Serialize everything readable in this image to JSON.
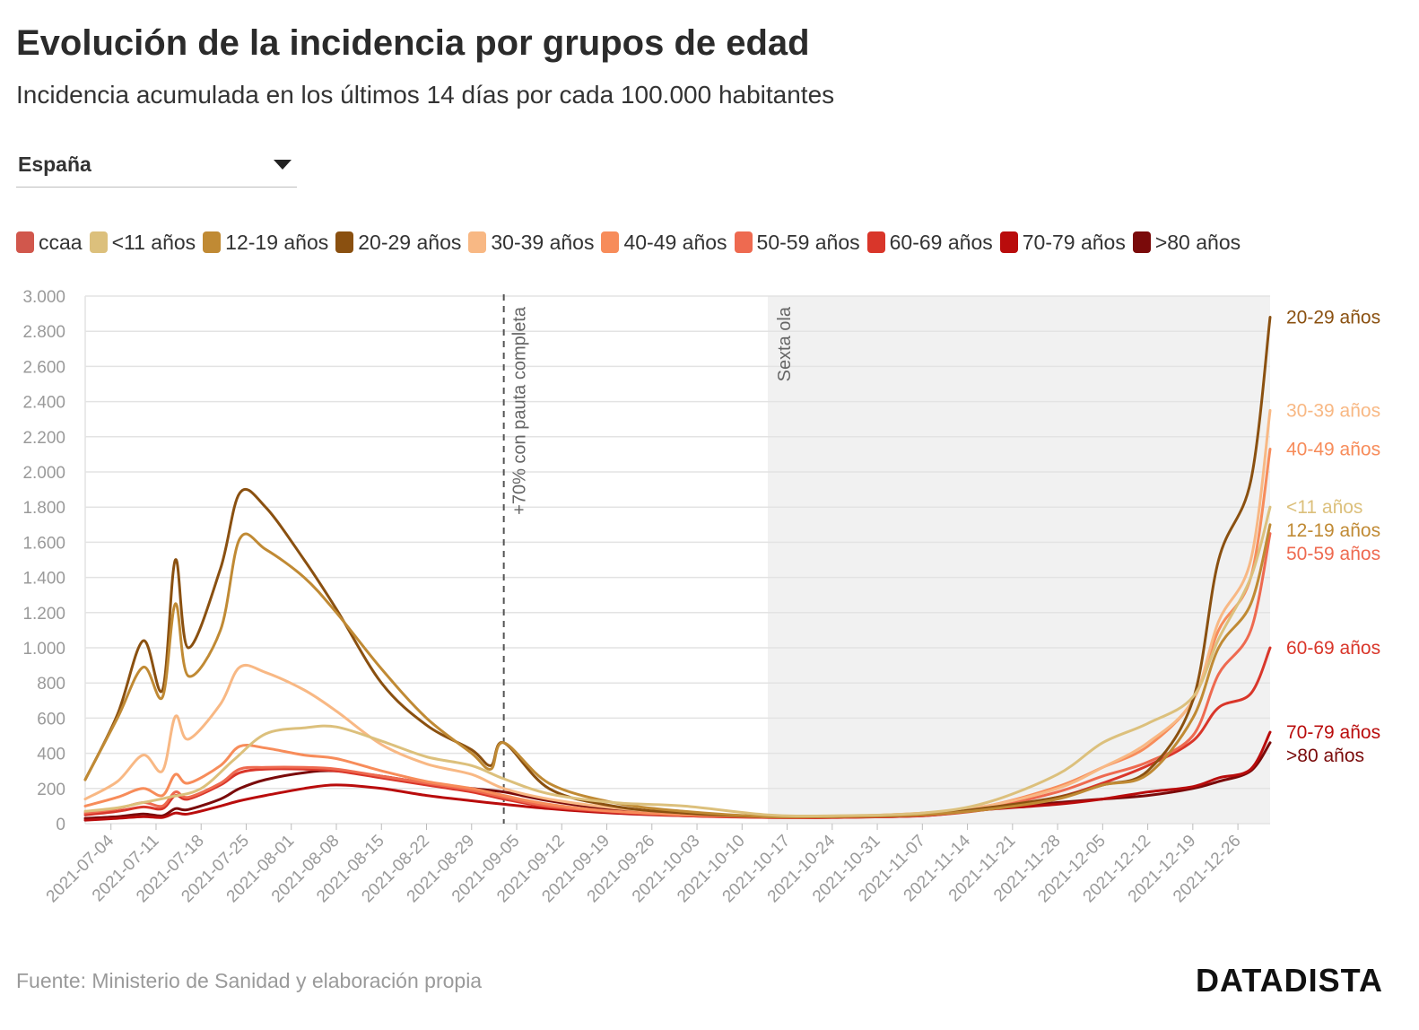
{
  "header": {
    "title": "Evolución de la incidencia por grupos de edad",
    "subtitle": "Incidencia acumulada en los últimos 14 días por cada 100.000 habitantes"
  },
  "selector": {
    "value": "España"
  },
  "footer": {
    "source": "Fuente: Ministerio de Sanidad y elaboración propia",
    "logo": "DATADISTA"
  },
  "chart_data": {
    "type": "line",
    "ylim": [
      0,
      3000
    ],
    "yticks": [
      0,
      200,
      400,
      600,
      800,
      1000,
      1200,
      1400,
      1600,
      1800,
      2000,
      2200,
      2400,
      2600,
      2800,
      3000
    ],
    "ytick_labels": [
      "0",
      "200",
      "400",
      "600",
      "800",
      "1.000",
      "1.200",
      "1.400",
      "1.600",
      "1.800",
      "2.000",
      "2.200",
      "2.400",
      "2.600",
      "2.800",
      "3.000"
    ],
    "xlim": [
      "2021-06-30",
      "2021-12-31"
    ],
    "xticks": [
      "2021-07-04",
      "2021-07-11",
      "2021-07-18",
      "2021-07-25",
      "2021-08-01",
      "2021-08-08",
      "2021-08-15",
      "2021-08-22",
      "2021-08-29",
      "2021-09-05",
      "2021-09-12",
      "2021-09-19",
      "2021-09-26",
      "2021-10-03",
      "2021-10-10",
      "2021-10-17",
      "2021-10-24",
      "2021-10-31",
      "2021-11-07",
      "2021-11-14",
      "2021-11-21",
      "2021-11-28",
      "2021-12-05",
      "2021-12-12",
      "2021-12-19",
      "2021-12-26"
    ],
    "grid": true,
    "legend_position": "top",
    "annotations": [
      {
        "type": "vline",
        "date": "2021-09-03",
        "label": "+70% con pauta completa"
      },
      {
        "type": "shaded",
        "from": "2021-10-14",
        "to": "2021-12-31",
        "label": "Sexta ola"
      }
    ],
    "series": [
      {
        "name": "ccaa",
        "color": "#d1574c",
        "end_label": "",
        "x": [],
        "y": []
      },
      {
        "name": "<11 años",
        "color": "#dcc07c",
        "end_label": "<11 años",
        "x": [
          "2021-06-30",
          "2021-07-05",
          "2021-07-09",
          "2021-07-13",
          "2021-07-18",
          "2021-07-23",
          "2021-07-28",
          "2021-08-03",
          "2021-08-08",
          "2021-08-15",
          "2021-08-22",
          "2021-08-29",
          "2021-09-03",
          "2021-09-10",
          "2021-09-20",
          "2021-10-01",
          "2021-10-14",
          "2021-10-24",
          "2021-11-07",
          "2021-11-17",
          "2021-11-28",
          "2021-12-05",
          "2021-12-12",
          "2021-12-19",
          "2021-12-23",
          "2021-12-28",
          "2021-12-31"
        ],
        "y": [
          70,
          90,
          120,
          150,
          200,
          360,
          510,
          545,
          550,
          470,
          380,
          330,
          255,
          170,
          120,
          100,
          50,
          45,
          60,
          120,
          280,
          460,
          570,
          720,
          1050,
          1400,
          1800
        ]
      },
      {
        "name": "12-19 años",
        "color": "#c08a34",
        "end_label": "12-19 años",
        "x": [
          "2021-06-30",
          "2021-07-05",
          "2021-07-09",
          "2021-07-12",
          "2021-07-14",
          "2021-07-16",
          "2021-07-21",
          "2021-07-24",
          "2021-07-28",
          "2021-08-03",
          "2021-08-08",
          "2021-08-15",
          "2021-08-22",
          "2021-08-29",
          "2021-09-01",
          "2021-09-03",
          "2021-09-10",
          "2021-09-20",
          "2021-10-01",
          "2021-10-14",
          "2021-10-24",
          "2021-11-07",
          "2021-11-17",
          "2021-11-28",
          "2021-12-05",
          "2021-12-12",
          "2021-12-19",
          "2021-12-23",
          "2021-12-28",
          "2021-12-31"
        ],
        "y": [
          250,
          600,
          890,
          720,
          1250,
          840,
          1100,
          1620,
          1560,
          1400,
          1200,
          880,
          600,
          400,
          310,
          460,
          230,
          120,
          70,
          40,
          40,
          50,
          80,
          140,
          220,
          280,
          600,
          1000,
          1250,
          1700
        ]
      },
      {
        "name": "20-29 años",
        "color": "#8a5010",
        "end_label": "20-29 años",
        "x": [
          "2021-06-30",
          "2021-07-05",
          "2021-07-09",
          "2021-07-12",
          "2021-07-14",
          "2021-07-16",
          "2021-07-21",
          "2021-07-24",
          "2021-07-28",
          "2021-08-03",
          "2021-08-08",
          "2021-08-15",
          "2021-08-22",
          "2021-08-29",
          "2021-09-01",
          "2021-09-03",
          "2021-09-10",
          "2021-09-20",
          "2021-10-01",
          "2021-10-14",
          "2021-10-24",
          "2021-11-07",
          "2021-11-17",
          "2021-11-28",
          "2021-12-05",
          "2021-12-12",
          "2021-12-19",
          "2021-12-23",
          "2021-12-28",
          "2021-12-31"
        ],
        "y": [
          250,
          620,
          1040,
          760,
          1500,
          1000,
          1450,
          1880,
          1800,
          1500,
          1220,
          800,
          560,
          420,
          330,
          460,
          200,
          100,
          60,
          40,
          40,
          50,
          90,
          150,
          220,
          300,
          700,
          1500,
          1950,
          2880
        ]
      },
      {
        "name": "30-39 años",
        "color": "#f8b884",
        "end_label": "30-39 años",
        "x": [
          "2021-06-30",
          "2021-07-05",
          "2021-07-09",
          "2021-07-12",
          "2021-07-14",
          "2021-07-16",
          "2021-07-21",
          "2021-07-24",
          "2021-07-28",
          "2021-08-03",
          "2021-08-08",
          "2021-08-15",
          "2021-08-22",
          "2021-08-29",
          "2021-09-03",
          "2021-09-10",
          "2021-09-20",
          "2021-10-01",
          "2021-10-14",
          "2021-10-24",
          "2021-11-07",
          "2021-11-17",
          "2021-11-28",
          "2021-12-05",
          "2021-12-12",
          "2021-12-19",
          "2021-12-23",
          "2021-12-28",
          "2021-12-31"
        ],
        "y": [
          140,
          240,
          390,
          300,
          610,
          480,
          680,
          890,
          860,
          760,
          640,
          450,
          340,
          280,
          200,
          140,
          90,
          60,
          40,
          40,
          60,
          100,
          200,
          320,
          460,
          700,
          1150,
          1500,
          2350
        ]
      },
      {
        "name": "40-49 años",
        "color": "#f78c5a",
        "end_label": "40-49 años",
        "x": [
          "2021-06-30",
          "2021-07-05",
          "2021-07-09",
          "2021-07-12",
          "2021-07-14",
          "2021-07-16",
          "2021-07-21",
          "2021-07-24",
          "2021-07-28",
          "2021-08-03",
          "2021-08-08",
          "2021-08-15",
          "2021-08-22",
          "2021-08-29",
          "2021-09-03",
          "2021-09-10",
          "2021-09-20",
          "2021-10-01",
          "2021-10-14",
          "2021-10-24",
          "2021-11-07",
          "2021-11-17",
          "2021-11-28",
          "2021-12-05",
          "2021-12-12",
          "2021-12-19",
          "2021-12-23",
          "2021-12-28",
          "2021-12-31"
        ],
        "y": [
          100,
          150,
          200,
          160,
          280,
          230,
          330,
          440,
          430,
          390,
          370,
          300,
          240,
          200,
          160,
          110,
          70,
          50,
          40,
          40,
          60,
          100,
          210,
          320,
          440,
          700,
          1100,
          1400,
          2130
        ]
      },
      {
        "name": "50-59 años",
        "color": "#ee6a50",
        "end_label": "50-59 años",
        "x": [
          "2021-06-30",
          "2021-07-05",
          "2021-07-09",
          "2021-07-12",
          "2021-07-14",
          "2021-07-16",
          "2021-07-21",
          "2021-07-24",
          "2021-07-28",
          "2021-08-03",
          "2021-08-08",
          "2021-08-15",
          "2021-08-22",
          "2021-08-29",
          "2021-09-03",
          "2021-09-10",
          "2021-09-20",
          "2021-10-01",
          "2021-10-14",
          "2021-10-24",
          "2021-11-07",
          "2021-11-17",
          "2021-11-28",
          "2021-12-05",
          "2021-12-12",
          "2021-12-19",
          "2021-12-23",
          "2021-12-28",
          "2021-12-31"
        ],
        "y": [
          60,
          85,
          120,
          100,
          180,
          150,
          230,
          310,
          320,
          320,
          310,
          270,
          230,
          190,
          150,
          100,
          70,
          50,
          40,
          40,
          50,
          90,
          180,
          270,
          350,
          500,
          850,
          1100,
          1650
        ]
      },
      {
        "name": "60-69 años",
        "color": "#d9362a",
        "end_label": "60-69 años",
        "x": [
          "2021-06-30",
          "2021-07-05",
          "2021-07-09",
          "2021-07-12",
          "2021-07-14",
          "2021-07-16",
          "2021-07-21",
          "2021-07-24",
          "2021-07-28",
          "2021-08-03",
          "2021-08-08",
          "2021-08-15",
          "2021-08-22",
          "2021-08-29",
          "2021-09-03",
          "2021-09-10",
          "2021-09-20",
          "2021-10-01",
          "2021-10-14",
          "2021-10-24",
          "2021-11-07",
          "2021-11-17",
          "2021-11-28",
          "2021-12-05",
          "2021-12-12",
          "2021-12-19",
          "2021-12-23",
          "2021-12-28",
          "2021-12-31"
        ],
        "y": [
          50,
          70,
          95,
          85,
          160,
          140,
          220,
          290,
          310,
          310,
          300,
          260,
          220,
          180,
          140,
          95,
          65,
          45,
          35,
          35,
          45,
          80,
          150,
          230,
          330,
          470,
          660,
          740,
          1000
        ]
      },
      {
        "name": "70-79 años",
        "color": "#b90c0c",
        "end_label": "70-79 años",
        "x": [
          "2021-06-30",
          "2021-07-05",
          "2021-07-09",
          "2021-07-12",
          "2021-07-14",
          "2021-07-16",
          "2021-07-21",
          "2021-07-24",
          "2021-07-28",
          "2021-08-03",
          "2021-08-08",
          "2021-08-15",
          "2021-08-22",
          "2021-08-29",
          "2021-09-03",
          "2021-09-10",
          "2021-09-20",
          "2021-10-01",
          "2021-10-14",
          "2021-10-24",
          "2021-11-07",
          "2021-11-17",
          "2021-11-28",
          "2021-12-05",
          "2021-12-12",
          "2021-12-19",
          "2021-12-23",
          "2021-12-28",
          "2021-12-31"
        ],
        "y": [
          20,
          30,
          40,
          35,
          60,
          55,
          100,
          130,
          160,
          200,
          220,
          200,
          160,
          130,
          110,
          85,
          60,
          45,
          35,
          35,
          45,
          80,
          110,
          140,
          180,
          210,
          260,
          310,
          520
        ]
      },
      {
        "name": ">80 años",
        "color": "#7a0a0a",
        "end_label": ">80 años",
        "x": [
          "2021-06-30",
          "2021-07-05",
          "2021-07-09",
          "2021-07-12",
          "2021-07-14",
          "2021-07-16",
          "2021-07-21",
          "2021-07-24",
          "2021-07-28",
          "2021-08-03",
          "2021-08-08",
          "2021-08-15",
          "2021-08-22",
          "2021-08-29",
          "2021-09-03",
          "2021-09-10",
          "2021-09-20",
          "2021-10-01",
          "2021-10-14",
          "2021-10-24",
          "2021-11-07",
          "2021-11-17",
          "2021-11-28",
          "2021-12-05",
          "2021-12-12",
          "2021-12-19",
          "2021-12-23",
          "2021-12-28",
          "2021-12-31"
        ],
        "y": [
          30,
          40,
          55,
          45,
          85,
          80,
          140,
          200,
          250,
          290,
          300,
          270,
          230,
          200,
          180,
          130,
          80,
          55,
          40,
          40,
          50,
          85,
          120,
          140,
          160,
          200,
          240,
          300,
          460
        ]
      }
    ]
  }
}
